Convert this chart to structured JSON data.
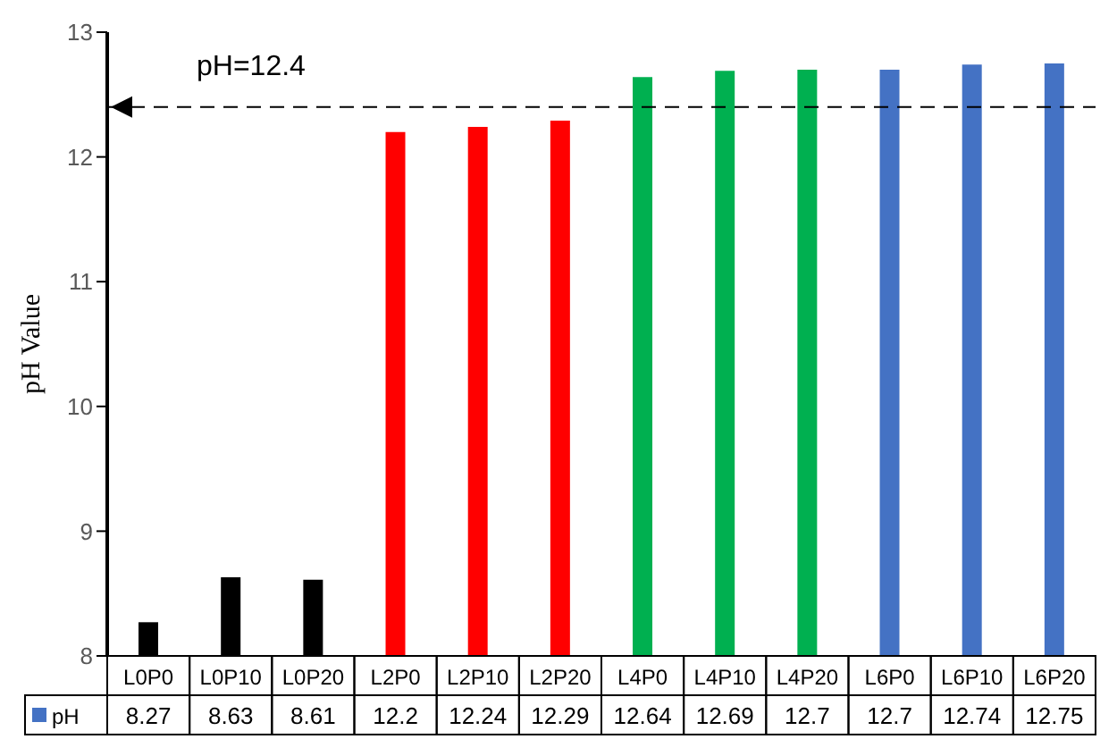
{
  "chart_data": {
    "type": "bar",
    "ylabel": "pH Value",
    "categories": [
      "L0P0",
      "L0P10",
      "L0P20",
      "L2P0",
      "L2P10",
      "L2P20",
      "L4P0",
      "L4P10",
      "L4P20",
      "L6P0",
      "L6P10",
      "L6P20"
    ],
    "series": [
      {
        "name": "pH",
        "color": "#4472c4",
        "values": [
          8.27,
          8.63,
          8.61,
          12.2,
          12.24,
          12.29,
          12.64,
          12.69,
          12.7,
          12.7,
          12.74,
          12.75
        ],
        "colors": [
          "#000000",
          "#000000",
          "#000000",
          "#ff0000",
          "#ff0000",
          "#ff0000",
          "#00b050",
          "#00b050",
          "#00b050",
          "#4472c4",
          "#4472c4",
          "#4472c4"
        ]
      }
    ],
    "ylim": [
      8,
      13
    ],
    "yticks": [
      8,
      9,
      10,
      11,
      12,
      13
    ],
    "grid": false,
    "legend": "bottom",
    "data_labels": true,
    "ref_lines": [
      {
        "axis": "y",
        "value": 12.4,
        "label": "pH=12.4",
        "color": "#000000",
        "line_style": "dashed"
      }
    ]
  }
}
